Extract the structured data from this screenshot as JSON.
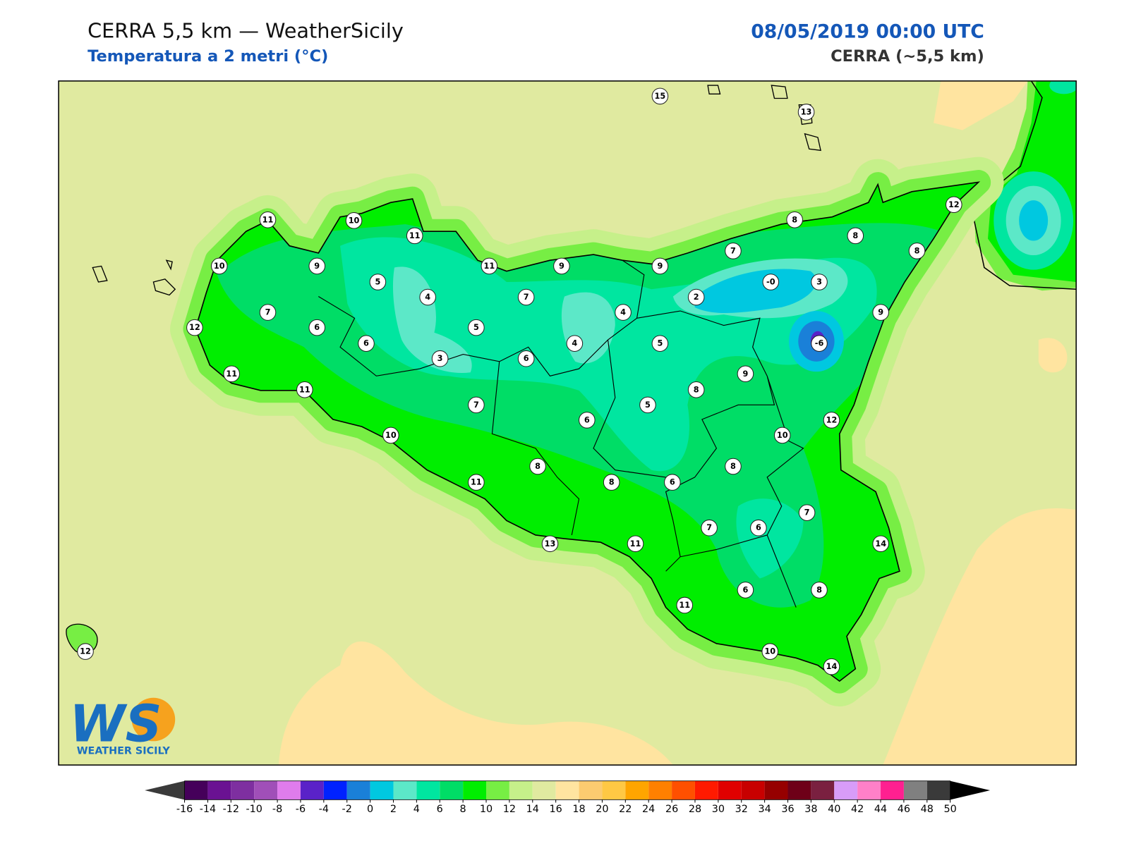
{
  "header": {
    "title": "CERRA 5,5 km — WeatherSicily",
    "subtitle": "Temperatura a 2 metri (°C)",
    "datetime": "08/05/2019 00:00 UTC",
    "model": "CERRA (~5,5 km)"
  },
  "stations": [
    15,
    13,
    11,
    10,
    11,
    12,
    8,
    8,
    10,
    9,
    11,
    9,
    9,
    7,
    8,
    5,
    {
      "value": 0,
      "label": "-0"
    },
    3,
    4,
    7,
    2,
    7,
    4,
    9,
    12,
    6,
    5,
    6,
    4,
    5,
    -6,
    3,
    6,
    11,
    9,
    11,
    8,
    7,
    5,
    6,
    12,
    10,
    10,
    8,
    8,
    11,
    8,
    6,
    7,
    6,
    7,
    13,
    11,
    14,
    6,
    8,
    11,
    12,
    10,
    14
  ],
  "colorbar": {
    "ticks": [
      -16,
      -14,
      -12,
      -10,
      -8,
      -6,
      -4,
      -2,
      0,
      2,
      4,
      6,
      8,
      10,
      12,
      14,
      16,
      18,
      20,
      22,
      24,
      26,
      28,
      30,
      32,
      34,
      36,
      38,
      40,
      42,
      44,
      46,
      48,
      50
    ],
    "colors": [
      "#45005a",
      "#6a1292",
      "#7e2fa0",
      "#a04fb8",
      "#df7cec",
      "#5a22c8",
      "#0022ff",
      "#1a80d8",
      "#00c8e0",
      "#5ce8c8",
      "#00e6a0",
      "#00dd66",
      "#00ee00",
      "#77ee44",
      "#c6f08a",
      "#e0eaa0",
      "#ffe4a0",
      "#fccb70",
      "#ffc844",
      "#ffa500",
      "#ff8000",
      "#ff5000",
      "#ff1a00",
      "#e00000",
      "#c80000",
      "#960000",
      "#6e0018",
      "#7a2040",
      "#d89cf8",
      "#ff80c8",
      "#ff2090",
      "#808080",
      "#3a3a3a"
    ],
    "under_color": "#3a3a3a",
    "over_color": "#000000"
  },
  "logo": {
    "letters": "WS",
    "name": "WEATHER SICILY"
  }
}
